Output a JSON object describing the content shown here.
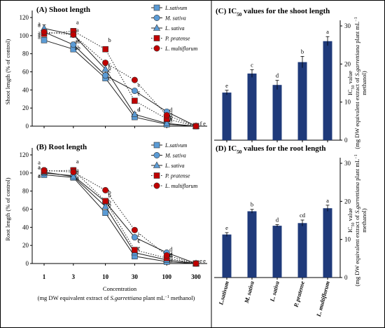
{
  "chart_data": [
    {
      "type": "line",
      "title": "(A) Shoot length",
      "ylabel": "Shoot length (% of control)",
      "xlabel": "",
      "x": [
        1,
        3,
        10,
        30,
        100,
        300
      ],
      "x_tick_labels": [
        "1",
        "3",
        "10",
        "30",
        "100",
        "300"
      ],
      "x_scale": "log",
      "ylim": [
        0,
        120
      ],
      "yticks": [
        "0",
        "20",
        "40",
        "60",
        "80",
        "100",
        "120"
      ],
      "legend_position": "top-right",
      "series": [
        {
          "name": "L.sativum",
          "marker": "square",
          "fill": "#5b9bd5",
          "line": "solid",
          "values": [
            95,
            85,
            53,
            10,
            2,
            0
          ],
          "errors": [
            3,
            3,
            3,
            2,
            1,
            0
          ],
          "letters": [
            "a",
            "ab",
            "c",
            "d",
            "e",
            "f"
          ]
        },
        {
          "name": "M. sativa",
          "marker": "circle",
          "fill": "#5b9bd5",
          "line": "solid",
          "values": [
            104,
            90,
            56,
            39,
            16,
            0
          ],
          "errors": [
            4,
            3,
            3,
            2,
            2,
            0
          ],
          "letters": [
            "a",
            "ab",
            "c",
            "c",
            "d",
            "e"
          ]
        },
        {
          "name": "L. sativa",
          "marker": "triangle",
          "fill": "#5b9bd5",
          "line": "solid",
          "values": [
            108,
            101,
            63,
            13,
            3,
            0
          ],
          "errors": [
            4,
            3,
            4,
            2,
            1,
            0
          ],
          "letters": [
            "a",
            "a",
            "c",
            "d",
            "e",
            "e"
          ]
        },
        {
          "name": "P. pratense",
          "marker": "square",
          "fill": "#c00000",
          "line": "dotted",
          "values": [
            102,
            105,
            85,
            28,
            8,
            0
          ],
          "errors": [
            3,
            3,
            2,
            2,
            1,
            0
          ],
          "letters": [
            "a",
            "a",
            "b",
            "c",
            "d",
            "e"
          ]
        },
        {
          "name": "L. multiflorum",
          "marker": "circle",
          "fill": "#c00000",
          "line": "dotted",
          "values": [
            104,
            101,
            70,
            51,
            12,
            0
          ],
          "errors": [
            3,
            3,
            2,
            2,
            2,
            0
          ],
          "letters": [
            "a",
            "a",
            "b",
            "c",
            "d",
            "e"
          ]
        }
      ]
    },
    {
      "type": "line",
      "title": "(B) Root length",
      "ylabel": "Root length (% of control)",
      "xlabel": "Concentration",
      "xlabel2": "(mg DW equivalent extract of S.garrettiana plant mL−1 methanol)",
      "x": [
        1,
        3,
        10,
        30,
        100,
        300
      ],
      "x_tick_labels": [
        "1",
        "3",
        "10",
        "30",
        "100",
        "300"
      ],
      "x_scale": "log",
      "ylim": [
        0,
        120
      ],
      "yticks": [
        "0",
        "20",
        "40",
        "60",
        "80",
        "100",
        "120"
      ],
      "legend_position": "top-right",
      "series": [
        {
          "name": "L.sativum",
          "marker": "square",
          "fill": "#5b9bd5",
          "line": "solid",
          "values": [
            98,
            95,
            56,
            8,
            2,
            0
          ],
          "errors": [
            3,
            3,
            3,
            1,
            1,
            0
          ],
          "letters": [
            "a",
            "a",
            "c",
            "c",
            "d",
            "e"
          ]
        },
        {
          "name": "M. sativa",
          "marker": "circle",
          "fill": "#5b9bd5",
          "line": "solid",
          "values": [
            100,
            97,
            68,
            29,
            12,
            0
          ],
          "errors": [
            3,
            3,
            3,
            2,
            2,
            0
          ],
          "letters": [
            "a",
            "a",
            "b",
            "c",
            "d",
            "e"
          ]
        },
        {
          "name": "L. sativa",
          "marker": "triangle",
          "fill": "#5b9bd5",
          "line": "solid",
          "values": [
            101,
            96,
            63,
            12,
            4,
            0
          ],
          "errors": [
            3,
            3,
            3,
            2,
            1,
            0
          ],
          "letters": [
            "a",
            "a",
            "b",
            "c",
            "d",
            "e"
          ]
        },
        {
          "name": "P. pratense",
          "marker": "square",
          "fill": "#c00000",
          "line": "dotted",
          "values": [
            102,
            103,
            69,
            15,
            6,
            0
          ],
          "errors": [
            3,
            3,
            2,
            2,
            1,
            0
          ],
          "letters": [
            "a",
            "a",
            "b",
            "c",
            "d",
            "e"
          ]
        },
        {
          "name": "L. multiflorum",
          "marker": "circle",
          "fill": "#c00000",
          "line": "dotted",
          "values": [
            103,
            101,
            81,
            37,
            9,
            0
          ],
          "errors": [
            3,
            3,
            2,
            2,
            1,
            0
          ],
          "letters": [
            "a",
            "a",
            "b",
            "c",
            "d",
            "e"
          ]
        }
      ]
    },
    {
      "type": "bar",
      "title": "(C) IC50 values for the shoot length",
      "ylabel": "IC50 value (mg DW equivalent extract of S.garrettiana plant mL−1 methanol)",
      "categories": [
        "L.sativum",
        "M. sativa",
        "L. sativa",
        "P. pratense",
        "L. multiflorum"
      ],
      "values": [
        12.5,
        17.5,
        14.5,
        20.5,
        26.0
      ],
      "errors": [
        0.6,
        1.0,
        1.2,
        1.5,
        1.2
      ],
      "letters": [
        "e",
        "c",
        "d",
        "b",
        "a"
      ],
      "color": "#1f3a7a",
      "ylim": [
        0,
        30
      ],
      "yticks": [
        "0",
        "10",
        "20",
        "30"
      ]
    },
    {
      "type": "bar",
      "title": "(D) IC50 values for the root length",
      "ylabel": "IC50 value (mg DW equivalent extract of S.garrettiana plant mL−1 methanol)",
      "categories": [
        "L.sativum",
        "M. sativa",
        "L. sativa",
        "P. pratense",
        "L. multiflorum"
      ],
      "values": [
        11.3,
        17.4,
        13.6,
        14.3,
        18.2
      ],
      "errors": [
        0.5,
        0.5,
        0.3,
        0.8,
        0.8
      ],
      "letters": [
        "e",
        "b",
        "d",
        "cd",
        "a"
      ],
      "color": "#1f3a7a",
      "ylim": [
        0,
        30
      ],
      "yticks": [
        "0",
        "10",
        "20",
        "30"
      ]
    }
  ]
}
